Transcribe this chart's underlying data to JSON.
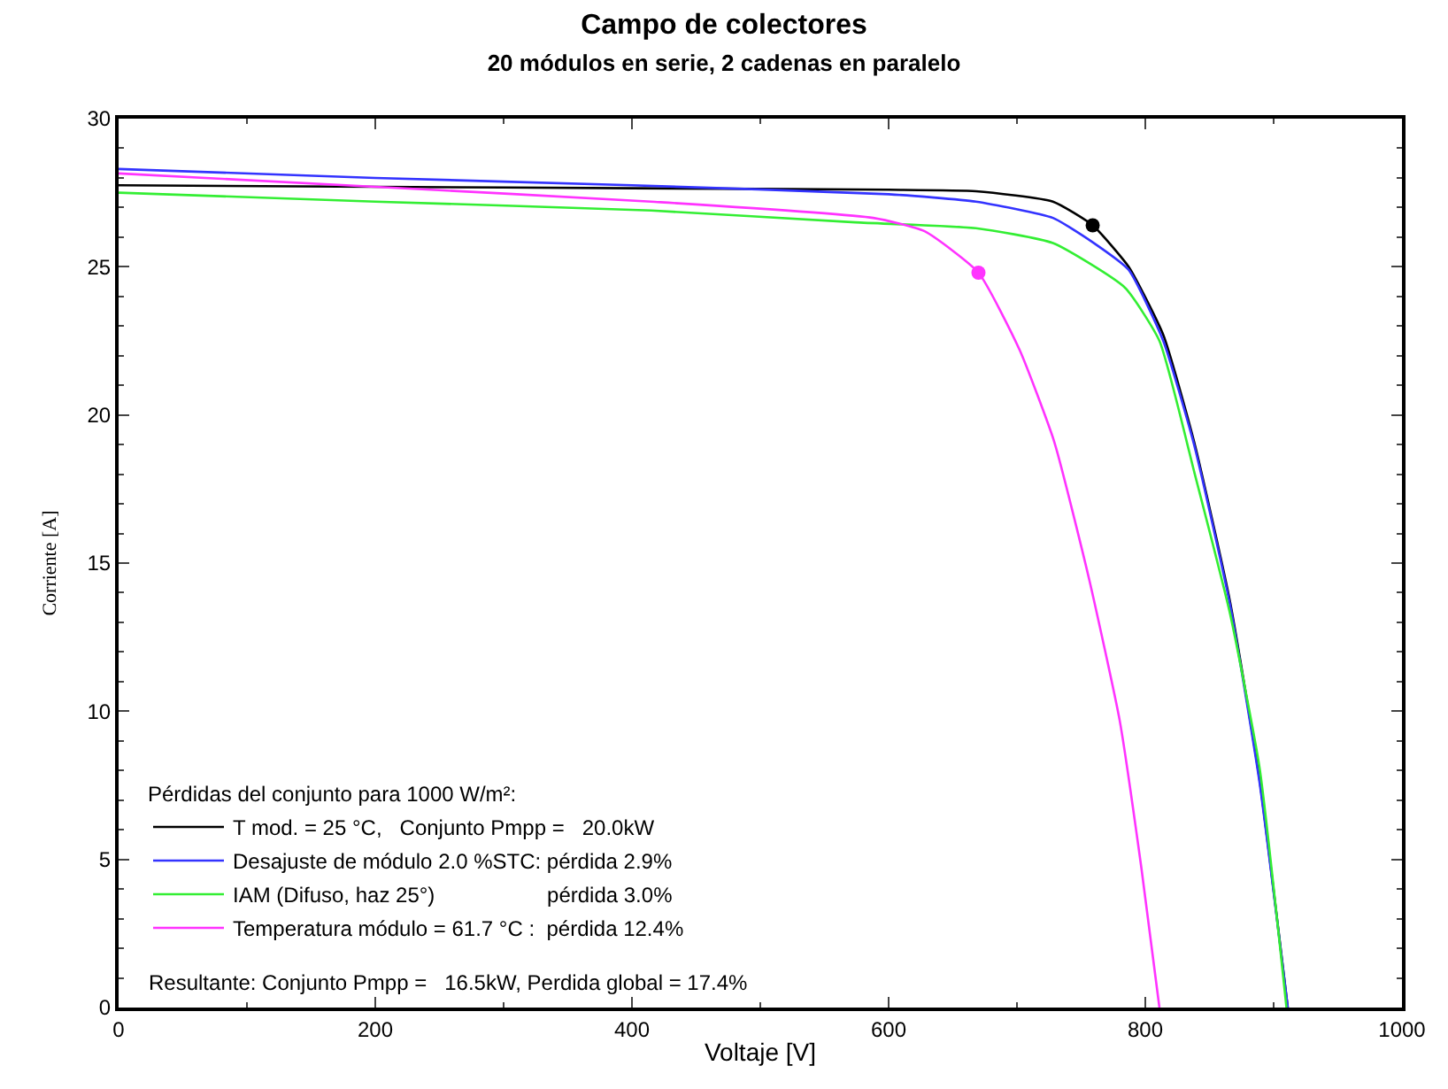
{
  "chart_data": {
    "type": "line",
    "title": "Campo de colectores",
    "subtitle": "20 módulos en serie, 2 cadenas en paralelo",
    "xlabel": "Voltaje [V]",
    "ylabel": "Corriente [A]",
    "legend_title": "Pérdidas del conjunto para 1000 W/m²:",
    "xlim": [
      0,
      1000
    ],
    "xticks": [
      0,
      200,
      400,
      600,
      800,
      1000
    ],
    "ylim": [
      0,
      30
    ],
    "yticks": [
      0,
      5,
      10,
      15,
      20,
      25,
      30
    ],
    "legend": "bottom left",
    "marker": "none",
    "line_style": "solid",
    "series": [
      {
        "name": "T mod. = 25 °C,   Conjunto Pmpp =   20.0kW",
        "color": "#000000",
        "x": [
          0,
          200,
          400,
          600,
          668,
          728,
          759,
          787,
          814,
          838,
          866,
          889,
          911
        ],
        "values": [
          27.75,
          27.7,
          27.65,
          27.6,
          27.55,
          27.2,
          26.4,
          25.0,
          22.7,
          19.1,
          13.7,
          7.7,
          0
        ]
      },
      {
        "name": "Desajuste de módulo 2.0 %STC: pérdida 2.9%",
        "color": "#3333ff",
        "x": [
          0,
          200,
          400,
          600,
          668,
          728,
          760,
          787,
          814,
          838,
          866,
          889,
          911
        ],
        "values": [
          28.3,
          28.0,
          27.75,
          27.45,
          27.2,
          26.65,
          25.8,
          24.9,
          22.5,
          19.0,
          13.6,
          7.6,
          0
        ]
      },
      {
        "name": "IAM (Difuso, haz 25°)                   pérdida 3.0%",
        "color": "#33ee33",
        "x": [
          0,
          200,
          415,
          574,
          668,
          728,
          784,
          811,
          838,
          866,
          889,
          910
        ],
        "values": [
          27.5,
          27.2,
          26.9,
          26.5,
          26.3,
          25.8,
          24.3,
          22.5,
          18.1,
          13.3,
          8.1,
          0
        ]
      },
      {
        "name": "Temperatura módulo = 61.7 °C :  pérdida 12.4%",
        "color": "#ff33ff",
        "x": [
          0,
          200,
          415,
          588,
          628,
          670,
          702,
          729,
          756,
          780,
          797,
          811
        ],
        "values": [
          28.15,
          27.7,
          27.2,
          26.65,
          26.2,
          24.8,
          22.2,
          19.1,
          14.5,
          9.7,
          4.7,
          0
        ]
      },
      {
        "type": "scatter",
        "marker": "circle",
        "color": "#000000",
        "x": [
          759
        ],
        "values": [
          26.4
        ]
      },
      {
        "type": "scatter",
        "marker": "circle",
        "color": "#ff33ff",
        "x": [
          670
        ],
        "values": [
          24.8
        ]
      }
    ],
    "annotations": [
      "Resultante: Conjunto Pmpp =   16.5kW, Perdida global = 17.4%"
    ]
  }
}
